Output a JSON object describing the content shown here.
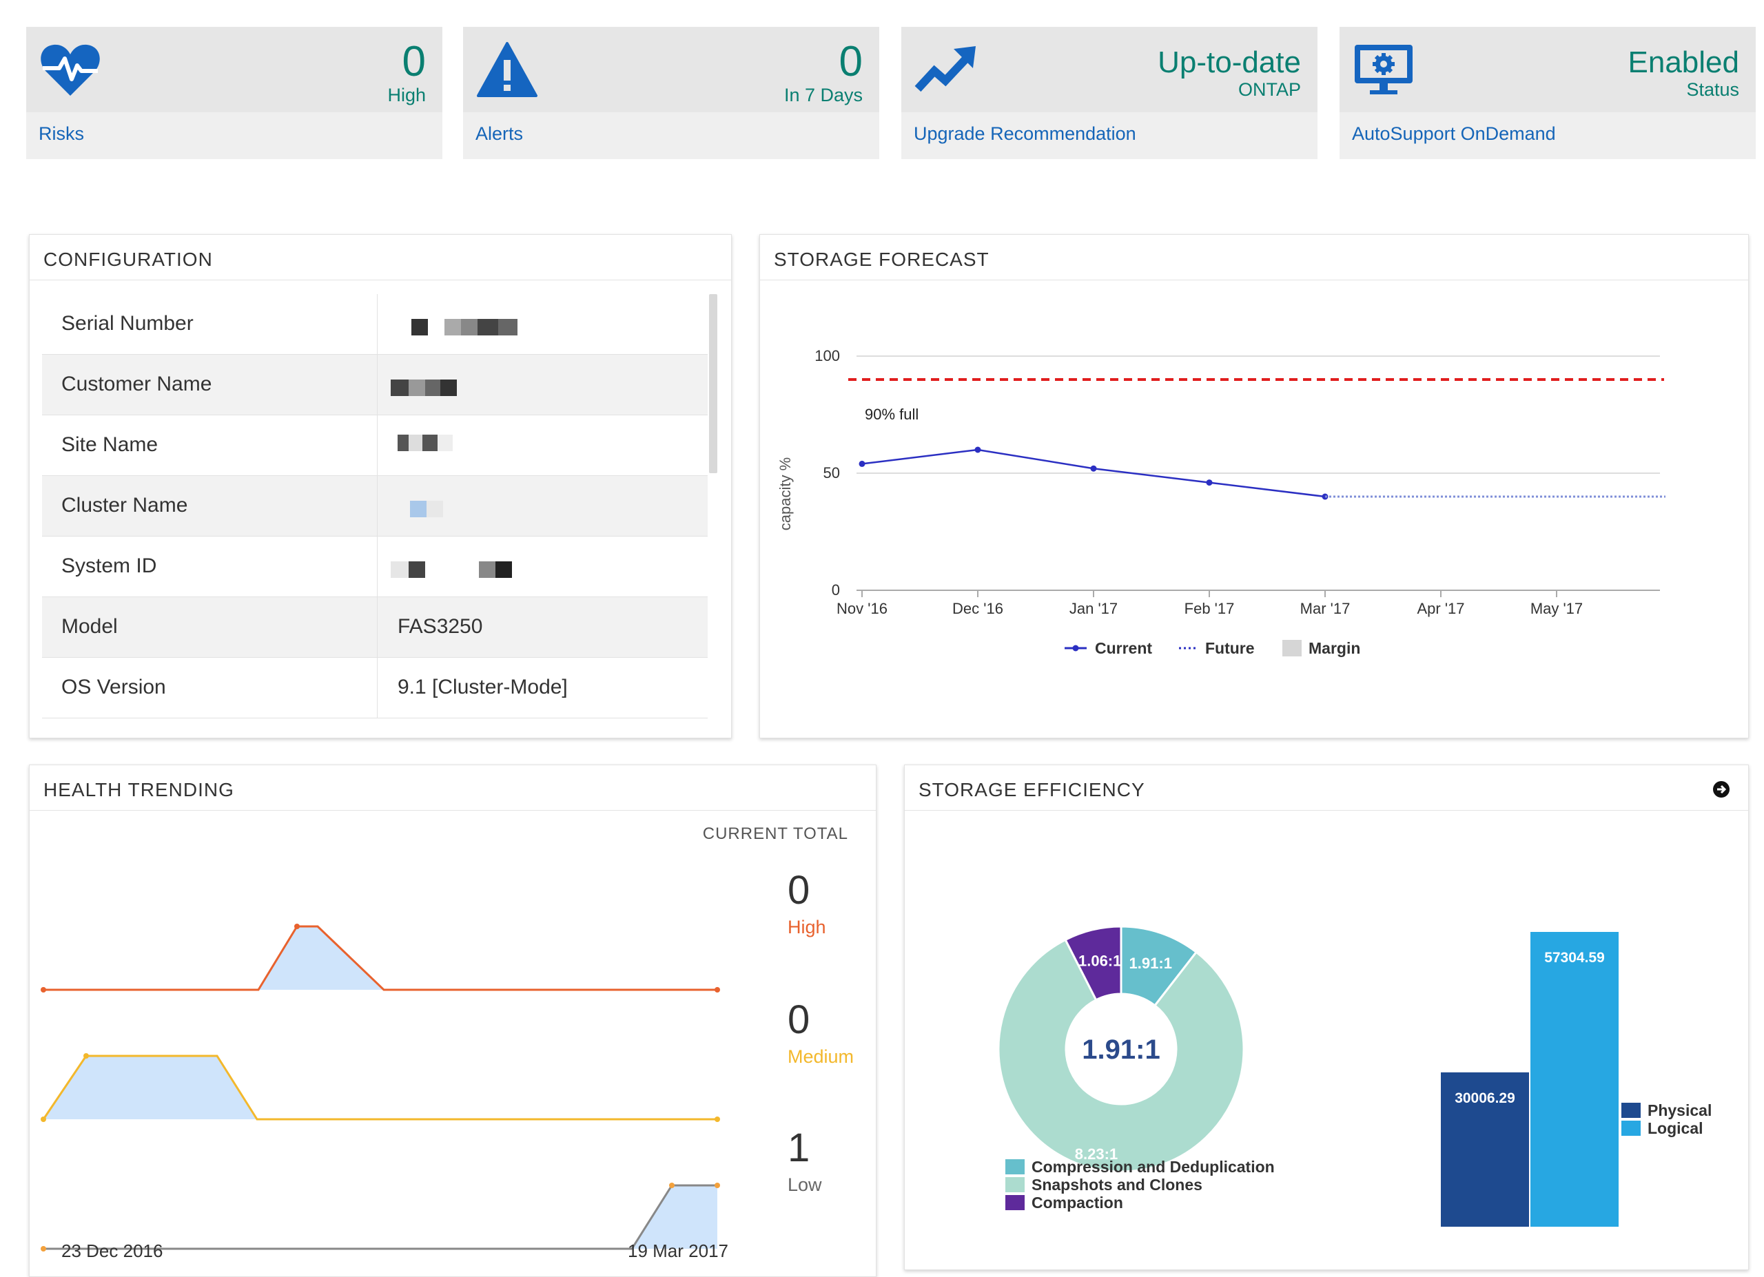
{
  "tiles": [
    {
      "value": "0",
      "sub": "High",
      "link": "Risks",
      "icon": "heartbeat-icon"
    },
    {
      "value": "0",
      "sub": "In 7 Days",
      "link": "Alerts",
      "icon": "warning-icon"
    },
    {
      "value": "Up-to-date",
      "sub": "ONTAP",
      "link": "Upgrade Recommendation",
      "icon": "trend-up-icon"
    },
    {
      "value": "Enabled",
      "sub": "Status",
      "link": "AutoSupport OnDemand",
      "icon": "monitor-gear-icon"
    }
  ],
  "configuration": {
    "title": "CONFIGURATION",
    "rows": [
      {
        "label": "Serial Number",
        "value": ""
      },
      {
        "label": "Customer Name",
        "value": ""
      },
      {
        "label": "Site Name",
        "value": ""
      },
      {
        "label": "Cluster Name",
        "value": ""
      },
      {
        "label": "System ID",
        "value": ""
      },
      {
        "label": "Model",
        "value": "FAS3250"
      },
      {
        "label": "OS Version",
        "value": "9.1 [Cluster-Mode]"
      }
    ]
  },
  "storage_forecast": {
    "title": "STORAGE FORECAST",
    "threshold_label": "90% full",
    "legend": {
      "current": "Current",
      "future": "Future",
      "margin": "Margin"
    },
    "colors": {
      "current": "#2b2fc2",
      "future": "#7f8fd8",
      "threshold": "#e01e1e"
    },
    "chart_data": {
      "type": "line",
      "ylabel": "capacity %",
      "ylim": [
        0,
        100
      ],
      "yticks": [
        0,
        50,
        100
      ],
      "x_ticks": [
        "Nov '16",
        "Dec '16",
        "Jan '17",
        "Feb '17",
        "Mar '17",
        "Apr '17",
        "May '17"
      ],
      "threshold": 90,
      "series": [
        {
          "name": "Current",
          "x": [
            "Nov '16",
            "Dec '16",
            "Jan '17",
            "Feb '17",
            "Mar '17"
          ],
          "values": [
            54,
            60,
            52,
            46,
            40
          ]
        },
        {
          "name": "Future",
          "x": [
            "Mar '17",
            "May '17"
          ],
          "values": [
            40,
            40
          ]
        }
      ]
    }
  },
  "health_trending": {
    "title": "HEALTH TRENDING",
    "current_total_label": "CURRENT TOTAL",
    "start_date": "23 Dec 2016",
    "end_date": "19 Mar 2017",
    "levels": [
      {
        "count": "0",
        "label": "High",
        "color": "#e8622e"
      },
      {
        "count": "0",
        "label": "Medium",
        "color": "#f3b82c"
      },
      {
        "count": "1",
        "label": "Low",
        "color": "#777777"
      }
    ]
  },
  "storage_efficiency": {
    "title": "STORAGE EFFICIENCY",
    "center_label": "1.91:1",
    "pie": [
      {
        "name": "Compression and Deduplication",
        "label": "1.91:1",
        "fraction": 0.105,
        "color": "#66bfcc"
      },
      {
        "name": "Snapshots and Clones",
        "label": "8.23:1",
        "fraction": 0.82,
        "color": "#acdccf"
      },
      {
        "name": "Compaction",
        "label": "1.06:1",
        "fraction": 0.075,
        "color": "#5e2a9b"
      }
    ],
    "bars": [
      {
        "name": "Physical",
        "value": 30006.29,
        "label": "30006.29",
        "color": "#1e4a8f"
      },
      {
        "name": "Logical",
        "value": 57304.59,
        "label": "57304.59",
        "color": "#27a7e2"
      }
    ]
  }
}
